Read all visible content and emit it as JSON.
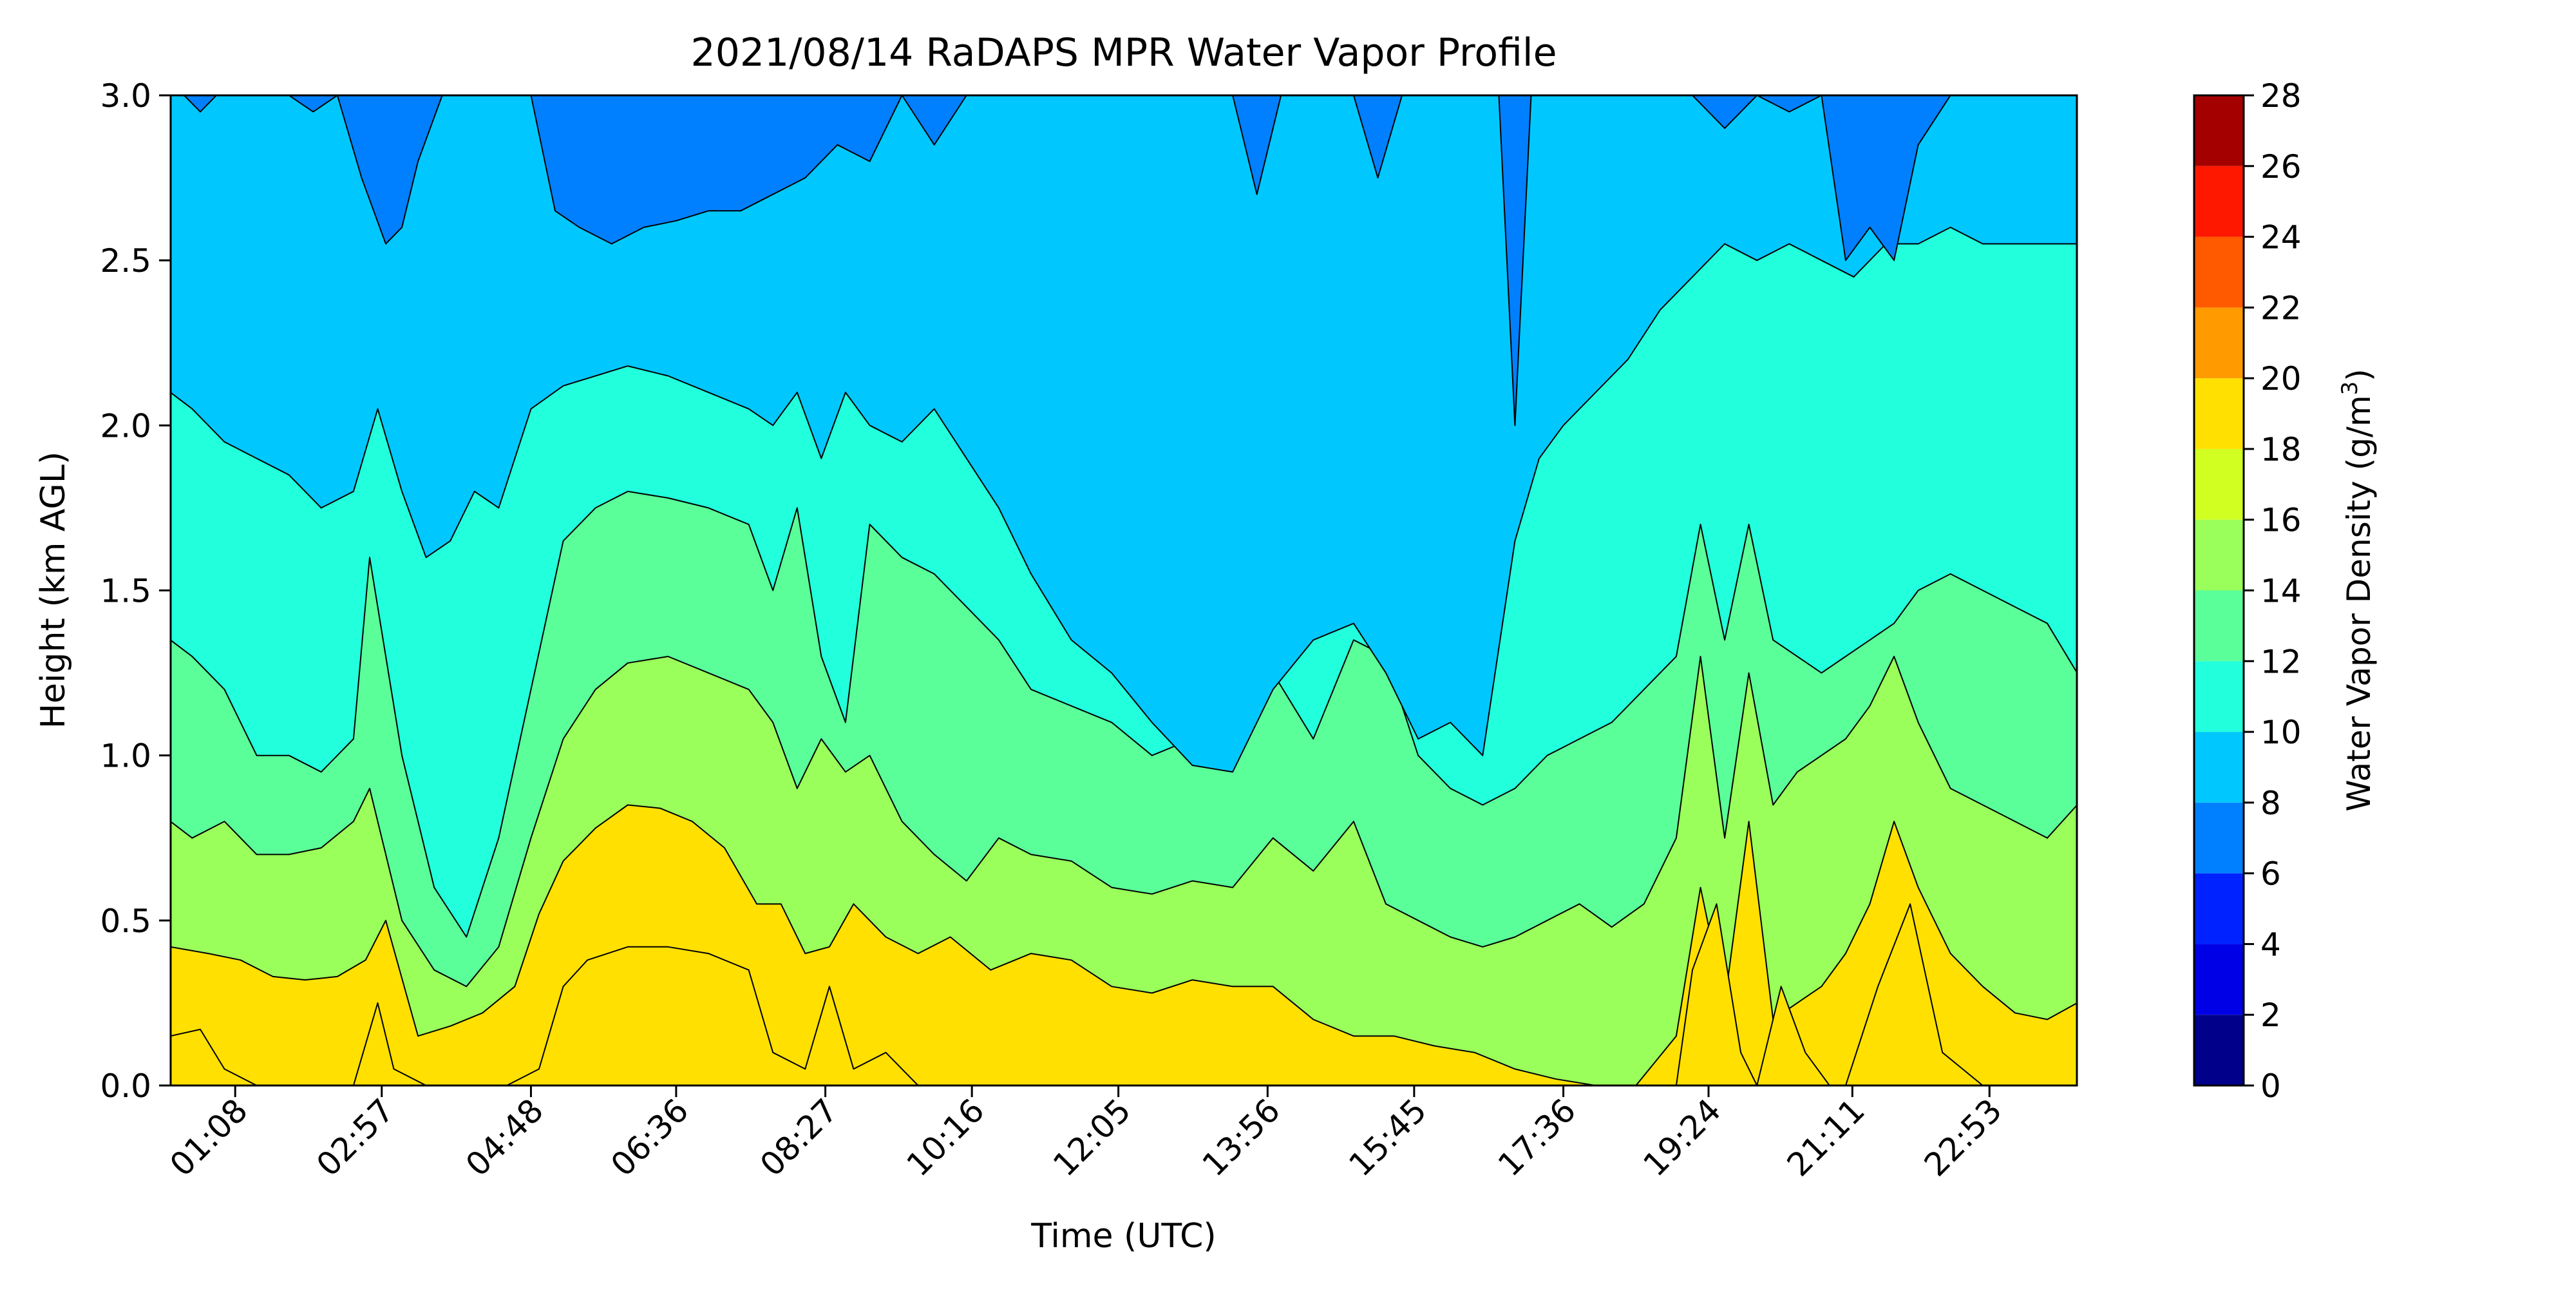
{
  "chart_data": {
    "type": "heatmap",
    "title": "2021/08/14 RaDAPS MPR Water Vapor Profile",
    "xlabel": "Time (UTC)",
    "ylabel": "Height (km AGL)",
    "xlim": [
      0.333,
      23.967
    ],
    "ylim": [
      0,
      3.0
    ],
    "x_ticks": [
      {
        "value": 1.133,
        "label": "01:08"
      },
      {
        "value": 2.95,
        "label": "02:57"
      },
      {
        "value": 4.8,
        "label": "04:48"
      },
      {
        "value": 6.6,
        "label": "06:36"
      },
      {
        "value": 8.45,
        "label": "08:27"
      },
      {
        "value": 10.267,
        "label": "10:16"
      },
      {
        "value": 12.083,
        "label": "12:05"
      },
      {
        "value": 13.933,
        "label": "13:56"
      },
      {
        "value": 15.75,
        "label": "15:45"
      },
      {
        "value": 17.6,
        "label": "17:36"
      },
      {
        "value": 19.4,
        "label": "19:24"
      },
      {
        "value": 21.183,
        "label": "21:11"
      },
      {
        "value": 22.883,
        "label": "22:53"
      }
    ],
    "y_ticks": [
      {
        "value": 0.0,
        "label": "0.0"
      },
      {
        "value": 0.5,
        "label": "0.5"
      },
      {
        "value": 1.0,
        "label": "1.0"
      },
      {
        "value": 1.5,
        "label": "1.5"
      },
      {
        "value": 2.0,
        "label": "2.0"
      },
      {
        "value": 2.5,
        "label": "2.5"
      },
      {
        "value": 3.0,
        "label": "3.0"
      }
    ],
    "colorbar": {
      "label_main": "Water Vapor Density (g/m",
      "label_sup": "3",
      "label_end": ")",
      "levels": [
        0,
        2,
        4,
        6,
        8,
        10,
        12,
        14,
        16,
        18,
        20,
        22,
        24,
        26,
        28
      ],
      "level_labels": [
        "0",
        "2",
        "4",
        "6",
        "8",
        "10",
        "12",
        "14",
        "16",
        "18",
        "20",
        "22",
        "24",
        "26",
        "28"
      ],
      "colors": [
        "#00008b",
        "#0000e6",
        "#0022ff",
        "#0080ff",
        "#00c8ff",
        "#22ffdc",
        "#5aff9a",
        "#9aff5a",
        "#d2ff22",
        "#ffe000",
        "#ff9a00",
        "#ff5a00",
        "#ff1800",
        "#a50000"
      ]
    },
    "series": [
      {
        "level": 16,
        "times": [
          0.33,
          0.8,
          1.2,
          1.6,
          2.0,
          2.4,
          2.75,
          3.0,
          3.4,
          3.8,
          4.2,
          4.6,
          4.9,
          5.2,
          5.6,
          6.0,
          6.4,
          6.8,
          7.2,
          7.6,
          7.9,
          8.2,
          8.5,
          8.8,
          9.2,
          9.6,
          10.0,
          10.5,
          11.0,
          11.5,
          12.0,
          12.5,
          13.0,
          13.5,
          14.0,
          14.5,
          15.0,
          15.5,
          16.0,
          16.5,
          17.0,
          17.5,
          18.0,
          18.5,
          19.0,
          19.3,
          19.6,
          19.9,
          20.2,
          20.5,
          20.8,
          21.1,
          21.4,
          21.7,
          22.0,
          22.4,
          22.8,
          23.2,
          23.6,
          23.97
        ],
        "heights": [
          0.42,
          0.4,
          0.38,
          0.33,
          0.32,
          0.33,
          0.38,
          0.5,
          0.15,
          0.18,
          0.22,
          0.3,
          0.52,
          0.68,
          0.78,
          0.85,
          0.84,
          0.8,
          0.72,
          0.55,
          0.55,
          0.4,
          0.42,
          0.55,
          0.45,
          0.4,
          0.45,
          0.35,
          0.4,
          0.38,
          0.3,
          0.28,
          0.32,
          0.3,
          0.3,
          0.2,
          0.15,
          0.15,
          0.12,
          0.1,
          0.05,
          0.02,
          0.0,
          0.0,
          0.15,
          0.6,
          0.25,
          0.8,
          0.2,
          0.25,
          0.3,
          0.4,
          0.55,
          0.8,
          0.6,
          0.4,
          0.3,
          0.22,
          0.2,
          0.25
        ]
      },
      {
        "level": 18,
        "times": [
          0.33,
          0.7,
          1.0,
          1.4,
          2.0,
          2.6,
          2.9,
          3.1,
          3.5,
          4.0,
          4.5,
          4.9,
          5.2,
          5.5,
          6.0,
          6.5,
          7.0,
          7.5,
          7.8,
          8.2,
          8.5,
          8.8,
          9.2,
          9.6,
          10.0,
          10.8,
          11.5,
          12.5,
          13.5,
          14.5,
          15.5,
          16.5,
          17.5,
          18.5,
          19.0,
          19.2,
          19.5,
          19.8,
          20.0,
          20.3,
          20.6,
          20.9,
          21.1,
          21.5,
          21.9,
          22.3,
          22.8,
          23.97
        ],
        "heights": [
          0.15,
          0.17,
          0.05,
          0.0,
          0.0,
          0.0,
          0.25,
          0.05,
          0.0,
          0.0,
          0.0,
          0.05,
          0.3,
          0.38,
          0.42,
          0.42,
          0.4,
          0.35,
          0.1,
          0.05,
          0.3,
          0.05,
          0.1,
          0.0,
          0.0,
          0.0,
          0.0,
          0.0,
          0.0,
          0.0,
          0.0,
          0.0,
          0.0,
          0.0,
          0.0,
          0.35,
          0.55,
          0.1,
          0.0,
          0.3,
          0.1,
          0.0,
          0.0,
          0.3,
          0.55,
          0.1,
          0.0,
          0.0
        ]
      },
      {
        "level": 14,
        "times": [
          0.33,
          0.6,
          1.0,
          1.4,
          1.8,
          2.2,
          2.6,
          2.8,
          3.2,
          3.6,
          4.0,
          4.4,
          4.8,
          5.2,
          5.6,
          6.0,
          6.5,
          7.0,
          7.5,
          7.8,
          8.1,
          8.4,
          8.7,
          9.0,
          9.4,
          9.8,
          10.2,
          10.6,
          11.0,
          11.5,
          12.0,
          12.5,
          13.0,
          13.5,
          14.0,
          14.5,
          15.0,
          15.4,
          15.8,
          16.2,
          16.6,
          17.0,
          17.4,
          17.8,
          18.2,
          18.6,
          19.0,
          19.3,
          19.6,
          19.9,
          20.2,
          20.5,
          20.8,
          21.1,
          21.4,
          21.7,
          22.0,
          22.4,
          22.8,
          23.2,
          23.6,
          23.97
        ],
        "heights": [
          0.8,
          0.75,
          0.8,
          0.7,
          0.7,
          0.72,
          0.8,
          0.9,
          0.5,
          0.35,
          0.3,
          0.42,
          0.75,
          1.05,
          1.2,
          1.28,
          1.3,
          1.25,
          1.2,
          1.1,
          0.9,
          1.05,
          0.95,
          1.0,
          0.8,
          0.7,
          0.62,
          0.75,
          0.7,
          0.68,
          0.6,
          0.58,
          0.62,
          0.6,
          0.75,
          0.65,
          0.8,
          0.55,
          0.5,
          0.45,
          0.42,
          0.45,
          0.5,
          0.55,
          0.48,
          0.55,
          0.75,
          1.3,
          0.75,
          1.25,
          0.85,
          0.95,
          1.0,
          1.05,
          1.15,
          1.3,
          1.1,
          0.9,
          0.85,
          0.8,
          0.75,
          0.85
        ]
      },
      {
        "level": 12,
        "times": [
          0.33,
          0.6,
          1.0,
          1.4,
          1.8,
          2.2,
          2.6,
          2.8,
          3.2,
          3.6,
          4.0,
          4.4,
          4.8,
          5.2,
          5.6,
          6.0,
          6.5,
          7.0,
          7.5,
          7.8,
          8.1,
          8.4,
          8.7,
          9.0,
          9.4,
          9.8,
          10.2,
          10.6,
          11.0,
          11.5,
          12.0,
          12.5,
          13.0,
          13.5,
          14.0,
          14.5,
          15.0,
          15.4,
          15.8,
          16.2,
          16.6,
          17.0,
          17.4,
          17.8,
          18.2,
          18.6,
          19.0,
          19.3,
          19.6,
          19.9,
          20.2,
          20.5,
          20.8,
          21.1,
          21.4,
          21.7,
          22.0,
          22.4,
          22.8,
          23.2,
          23.6,
          23.97
        ],
        "heights": [
          1.35,
          1.3,
          1.2,
          1.0,
          1.0,
          0.95,
          1.05,
          1.6,
          1.0,
          0.6,
          0.45,
          0.75,
          1.2,
          1.65,
          1.75,
          1.8,
          1.78,
          1.75,
          1.7,
          1.5,
          1.75,
          1.3,
          1.1,
          1.7,
          1.6,
          1.55,
          1.45,
          1.35,
          1.2,
          1.15,
          1.1,
          1.0,
          1.05,
          1.0,
          1.25,
          1.05,
          1.35,
          1.3,
          1.0,
          0.9,
          0.85,
          0.9,
          1.0,
          1.05,
          1.1,
          1.2,
          1.3,
          1.7,
          1.35,
          1.7,
          1.35,
          1.3,
          1.25,
          1.3,
          1.35,
          1.4,
          1.5,
          1.55,
          1.5,
          1.45,
          1.4,
          1.25
        ]
      },
      {
        "level": 10,
        "times": [
          0.33,
          0.6,
          1.0,
          1.4,
          1.8,
          2.2,
          2.6,
          2.9,
          3.2,
          3.5,
          3.8,
          4.1,
          4.4,
          4.8,
          5.2,
          5.6,
          6.0,
          6.5,
          7.0,
          7.5,
          7.8,
          8.1,
          8.4,
          8.7,
          9.0,
          9.4,
          9.8,
          10.2,
          10.6,
          11.0,
          11.5,
          12.0,
          12.5,
          13.0,
          13.5,
          14.0,
          14.5,
          15.0,
          15.4,
          15.8,
          16.2,
          16.6,
          17.0,
          17.3,
          17.6,
          18.0,
          18.4,
          18.8,
          19.2,
          19.6,
          20.0,
          20.4,
          20.8,
          21.2,
          21.6,
          22.0,
          22.4,
          22.8,
          23.2,
          23.6,
          23.97
        ],
        "heights": [
          2.1,
          2.05,
          1.95,
          1.9,
          1.85,
          1.75,
          1.8,
          2.05,
          1.8,
          1.6,
          1.65,
          1.8,
          1.75,
          2.05,
          2.12,
          2.15,
          2.18,
          2.15,
          2.1,
          2.05,
          2.0,
          2.1,
          1.9,
          2.1,
          2.0,
          1.95,
          2.05,
          1.9,
          1.75,
          1.55,
          1.35,
          1.25,
          1.1,
          0.97,
          0.95,
          1.2,
          1.35,
          1.4,
          1.25,
          1.05,
          1.1,
          1.0,
          1.65,
          1.9,
          2.0,
          2.1,
          2.2,
          2.35,
          2.45,
          2.55,
          2.5,
          2.55,
          2.5,
          2.45,
          2.55,
          2.55,
          2.6,
          2.55,
          2.55,
          2.55,
          2.55
        ]
      },
      {
        "level": 8,
        "times": [
          0.33,
          0.5,
          0.7,
          0.9,
          1.2,
          1.5,
          1.8,
          2.1,
          2.4,
          2.7,
          3.0,
          3.2,
          3.4,
          3.7,
          4.0,
          4.4,
          4.8,
          5.1,
          5.4,
          5.8,
          6.2,
          6.6,
          7.0,
          7.4,
          7.8,
          8.2,
          8.6,
          9.0,
          9.4,
          9.8,
          10.2,
          10.6,
          11.0,
          11.5,
          12.0,
          12.5,
          13.0,
          13.5,
          13.8,
          14.1,
          14.5,
          15.0,
          15.3,
          15.6,
          16.0,
          16.4,
          16.8,
          17.0,
          17.2,
          17.6,
          18.0,
          18.4,
          18.8,
          19.2,
          19.6,
          20.0,
          20.4,
          20.8,
          21.1,
          21.4,
          21.7,
          22.0,
          22.4,
          22.8,
          23.2,
          23.6,
          23.97
        ],
        "heights": [
          3.0,
          3.0,
          2.95,
          3.0,
          3.0,
          3.0,
          3.0,
          2.95,
          3.0,
          2.75,
          2.55,
          2.6,
          2.8,
          3.0,
          3.0,
          3.0,
          3.0,
          2.65,
          2.6,
          2.55,
          2.6,
          2.62,
          2.65,
          2.65,
          2.7,
          2.75,
          2.85,
          2.8,
          3.0,
          2.85,
          3.0,
          3.0,
          3.0,
          3.0,
          3.0,
          3.0,
          3.0,
          3.0,
          2.7,
          3.0,
          3.0,
          3.0,
          2.75,
          3.0,
          3.0,
          3.0,
          3.0,
          2.0,
          3.0,
          3.0,
          3.0,
          3.0,
          3.0,
          3.0,
          2.9,
          3.0,
          2.95,
          3.0,
          2.5,
          2.6,
          2.5,
          2.85,
          3.0,
          3.0,
          3.0,
          3.0,
          3.0
        ]
      }
    ]
  }
}
